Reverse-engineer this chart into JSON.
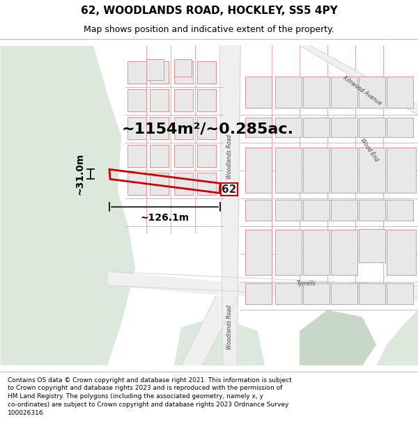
{
  "title": "62, WOODLANDS ROAD, HOCKLEY, SS5 4PY",
  "subtitle": "Map shows position and indicative extent of the property.",
  "footer": "Contains OS data © Crown copyright and database right 2021. This information is subject\nto Crown copyright and database rights 2023 and is reproduced with the permission of\nHM Land Registry. The polygons (including the associated geometry, namely x, y\nco-ordinates) are subject to Crown copyright and database rights 2023 Ordnance Survey\n100026316.",
  "map_bg": "#f5f5f0",
  "green_bg": "#dce8dc",
  "green_dark": "#c8d8c8",
  "road_line_color": "#e8a0a0",
  "road_gray_color": "#d8d8d8",
  "building_fill": "#e8e8e8",
  "building_outline": "#e89090",
  "highlight_color": "#cc0000",
  "text_color": "#444444",
  "area_text": "~1154m²/~0.285ac.",
  "width_text": "~126.1m",
  "height_text": "~31.0m",
  "number_text": "62",
  "title_fontsize": 11,
  "subtitle_fontsize": 9,
  "footer_fontsize": 6.5,
  "area_fontsize": 16,
  "dim_fontsize": 10
}
